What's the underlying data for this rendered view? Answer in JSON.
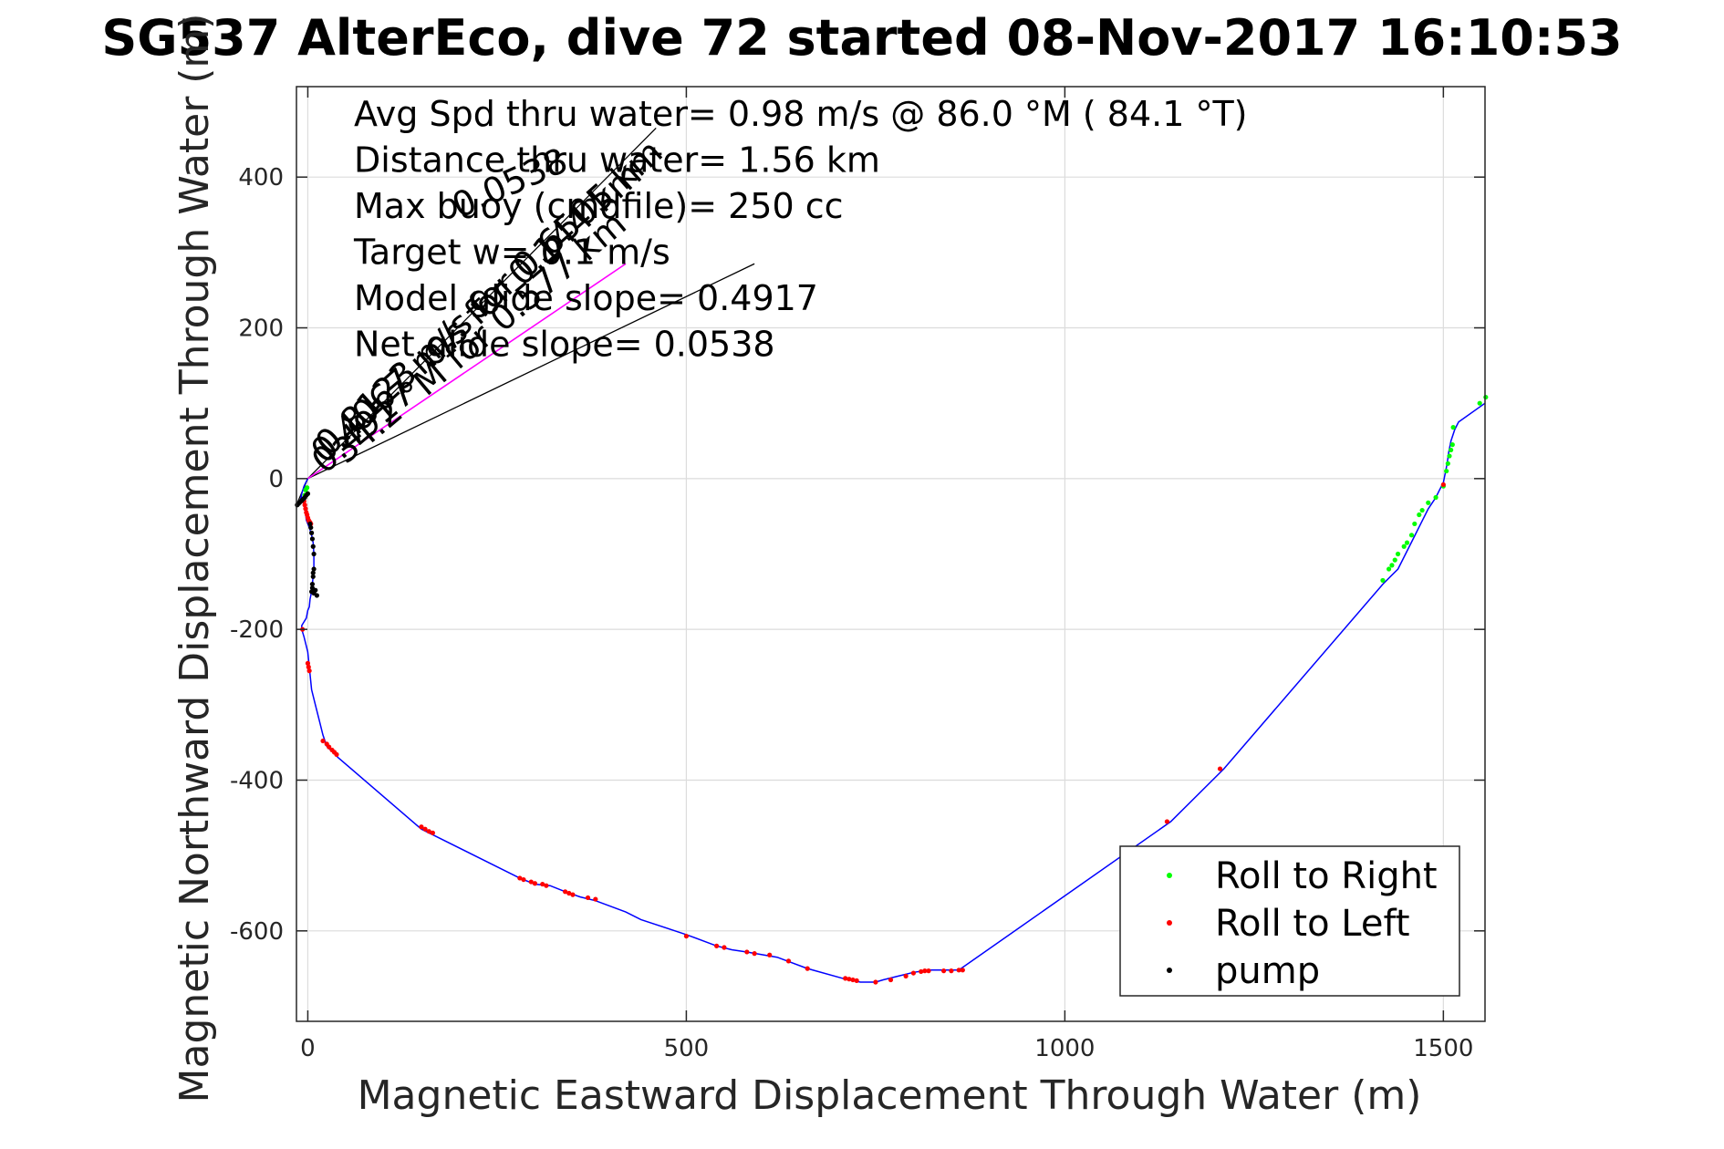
{
  "chart_data": {
    "type": "scatter",
    "title": "SG537 AlterEco, dive 72 started 08-Nov-2017 16:10:53",
    "xlabel": "Magnetic Eastward Displacement Through Water (m)",
    "ylabel": "Magnetic Northward Displacement Through Water (m)",
    "xlim": [
      -15,
      1555
    ],
    "ylim": [
      -720,
      520
    ],
    "x_ticks": [
      0,
      500,
      1000,
      1500
    ],
    "y_ticks": [
      -600,
      -400,
      -200,
      0,
      200,
      400
    ],
    "x_tick_labels": [
      "0",
      "500",
      "1000",
      "1500"
    ],
    "y_tick_labels": [
      "-600",
      "-400",
      "-200",
      "0",
      "200",
      "400"
    ],
    "grid": true,
    "legend_position": "bottom-right",
    "colors": {
      "track": "#0000ff",
      "roll_right": "#00ff00",
      "roll_left": "#ff0000",
      "pump": "#000000",
      "heading_line": "#ff00ff",
      "ref_line": "#000000"
    },
    "annotations": [
      "Avg Spd thru water=  0.98 m/s @  86.0 °M ( 84.1 °T)",
      "Distance thru water=  1.56 km",
      "Max buoy (cmdfile)= 250 cc",
      "Target w= 0.1 m/s",
      "Model glide slope= 0.4917",
      "Net glide slope= 0.0538"
    ],
    "rotated_labels": [
      {
        "text": "0.4067 m/s for 0.144 km",
        "angle_deg": 42
      },
      {
        "text": "34.2 °M for 0.577 km",
        "angle_deg": 40
      },
      {
        "text": "0.8123 m/s for 0.6505 km",
        "angle_deg": 42
      },
      {
        "text": "0.4917",
        "angle_deg": 40
      },
      {
        "text": "0.0538",
        "angle_deg": 24
      }
    ],
    "reference_lines": [
      {
        "x": [
          0,
          460
        ],
        "y": [
          0,
          465
        ]
      },
      {
        "x": [
          0,
          590
        ],
        "y": [
          0,
          285
        ]
      },
      {
        "x": [
          -15,
          0
        ],
        "y": [
          -35,
          0
        ]
      }
    ],
    "heading_line": {
      "x": [
        0,
        420
      ],
      "y": [
        0,
        285
      ]
    },
    "track": {
      "x": [
        0,
        -5,
        -8,
        -10,
        -12,
        -10,
        -8,
        -5,
        -3,
        -2,
        2,
        5,
        7,
        8,
        8,
        7,
        6,
        5,
        3,
        2,
        0,
        -2,
        -5,
        -8,
        -8,
        -5,
        0,
        2,
        5,
        10,
        15,
        20,
        25,
        30,
        35,
        40,
        150,
        160,
        280,
        300,
        320,
        340,
        360,
        380,
        420,
        440,
        500,
        540,
        560,
        580,
        620,
        660,
        710,
        720,
        730,
        750,
        760,
        780,
        800,
        820,
        840,
        860,
        1140,
        1210,
        1420,
        1440,
        1450,
        1460,
        1470,
        1480,
        1490,
        1495,
        1500,
        1505,
        1507,
        1510,
        1515,
        1520,
        1555
      ],
      "y": [
        0,
        -10,
        -20,
        -30,
        -35,
        -30,
        -25,
        -35,
        -45,
        -55,
        -65,
        -75,
        -85,
        -100,
        -120,
        -130,
        -140,
        -150,
        -160,
        -170,
        -175,
        -185,
        -190,
        -195,
        -200,
        -210,
        -230,
        -250,
        -280,
        -300,
        -320,
        -340,
        -355,
        -360,
        -365,
        -370,
        -465,
        -470,
        -530,
        -538,
        -540,
        -548,
        -555,
        -560,
        -575,
        -585,
        -605,
        -620,
        -625,
        -628,
        -635,
        -650,
        -664,
        -666,
        -668,
        -668,
        -665,
        -660,
        -655,
        -652,
        -652,
        -652,
        -455,
        -385,
        -140,
        -120,
        -100,
        -80,
        -60,
        -40,
        -25,
        -15,
        -5,
        20,
        35,
        50,
        65,
        75,
        100
      ]
    },
    "series": [
      {
        "name": "Roll to Right",
        "x": [
          -3,
          -1,
          -4,
          1420,
          1428,
          1432,
          1436,
          1440,
          1448,
          1452,
          1458,
          1462,
          1468,
          1472,
          1480,
          1490,
          1500,
          1504,
          1506,
          1508,
          1510,
          1512,
          1513,
          1548,
          1556
        ],
        "y": [
          -15,
          -12,
          -22,
          -135,
          -120,
          -115,
          -108,
          -100,
          -90,
          -85,
          -75,
          -60,
          -48,
          -42,
          -32,
          -25,
          -10,
          10,
          20,
          30,
          38,
          45,
          68,
          100,
          108
        ]
      },
      {
        "name": "Roll to Left",
        "x": [
          -5,
          -4,
          -3,
          -2,
          -1,
          0,
          1,
          2,
          3,
          4,
          -7,
          0,
          1,
          2,
          20,
          25,
          28,
          32,
          35,
          38,
          150,
          155,
          160,
          165,
          280,
          285,
          295,
          300,
          310,
          315,
          340,
          345,
          350,
          370,
          380,
          500,
          540,
          550,
          580,
          590,
          610,
          635,
          660,
          710,
          715,
          720,
          725,
          750,
          770,
          790,
          800,
          810,
          815,
          820,
          840,
          850,
          860,
          865,
          1135,
          1205,
          1500
        ],
        "y": [
          -30,
          -35,
          -40,
          -45,
          -48,
          -52,
          -55,
          -57,
          -58,
          -60,
          -200,
          -245,
          -250,
          -255,
          -348,
          -352,
          -356,
          -360,
          -363,
          -366,
          -462,
          -465,
          -468,
          -470,
          -530,
          -532,
          -535,
          -537,
          -538,
          -540,
          -548,
          -550,
          -552,
          -556,
          -558,
          -607,
          -620,
          -622,
          -628,
          -630,
          -632,
          -640,
          -650,
          -663,
          -664,
          -665,
          -666,
          -668,
          -665,
          -660,
          -656,
          -654,
          -653,
          -653,
          -653,
          -653,
          -652,
          -652,
          -455,
          -385,
          -8
        ]
      },
      {
        "name": "pump",
        "x": [
          -14,
          -12,
          -10,
          -8,
          -6,
          -4,
          -2,
          0,
          5,
          6,
          7,
          8,
          8,
          7,
          7,
          6,
          6,
          5,
          8,
          10,
          12,
          3,
          4
        ],
        "y": [
          -35,
          -33,
          -31,
          -29,
          -27,
          -25,
          -22,
          -20,
          -72,
          -80,
          -90,
          -100,
          -120,
          -125,
          -130,
          -140,
          -145,
          -150,
          -152,
          -148,
          -155,
          -60,
          -65
        ]
      }
    ]
  }
}
